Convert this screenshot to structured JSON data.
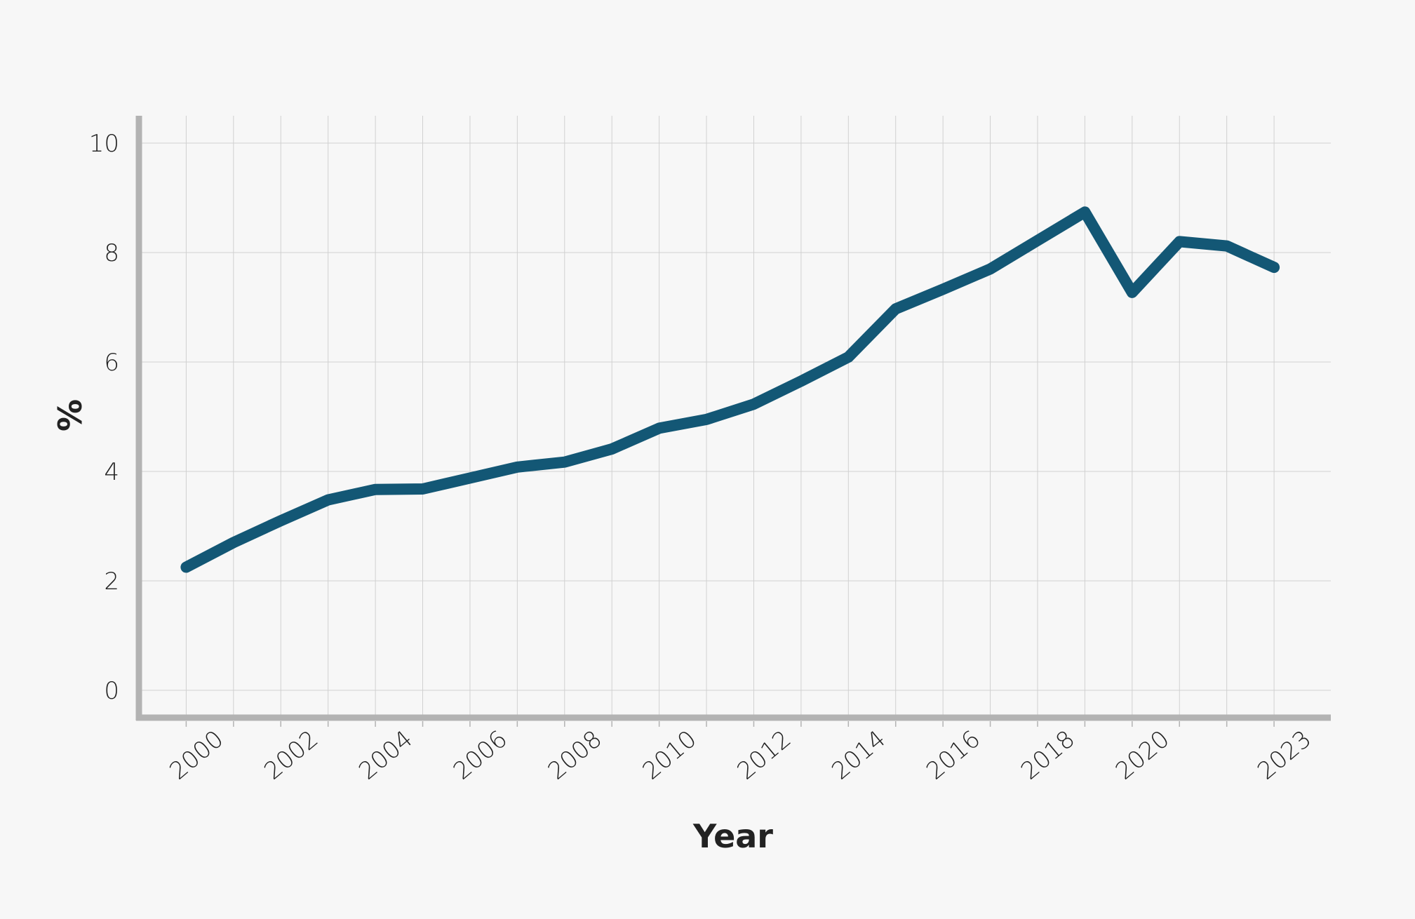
{
  "chart_data": {
    "type": "line",
    "title": "",
    "xlabel": "Year",
    "ylabel": "%",
    "xlim": [
      1999,
      2024.2
    ],
    "ylim": [
      -0.5,
      10.5
    ],
    "grid": true,
    "x_ticks": [
      2000,
      2002,
      2004,
      2006,
      2008,
      2010,
      2012,
      2014,
      2016,
      2018,
      2020,
      2023
    ],
    "y_ticks": [
      0,
      2,
      4,
      6,
      8,
      10
    ],
    "x": [
      2000,
      2001,
      2002,
      2003,
      2004,
      2005,
      2006,
      2007,
      2008,
      2009,
      2010,
      2011,
      2012,
      2013,
      2014,
      2015,
      2016,
      2017,
      2018,
      2019,
      2020,
      2021,
      2022,
      2023
    ],
    "series": [
      {
        "values": [
          2.25,
          2.7,
          3.1,
          3.48,
          3.67,
          3.68,
          3.88,
          4.08,
          4.17,
          4.41,
          4.79,
          4.95,
          5.23,
          5.65,
          6.09,
          6.97,
          7.33,
          7.7,
          8.22,
          8.74,
          7.27,
          8.2,
          8.12,
          7.73
        ]
      }
    ],
    "colors": {
      "line": "#135775",
      "grid": "#d0d0d0",
      "axis": "#b3b3b3",
      "background": "#f7f7f7",
      "text": "#222222"
    }
  }
}
